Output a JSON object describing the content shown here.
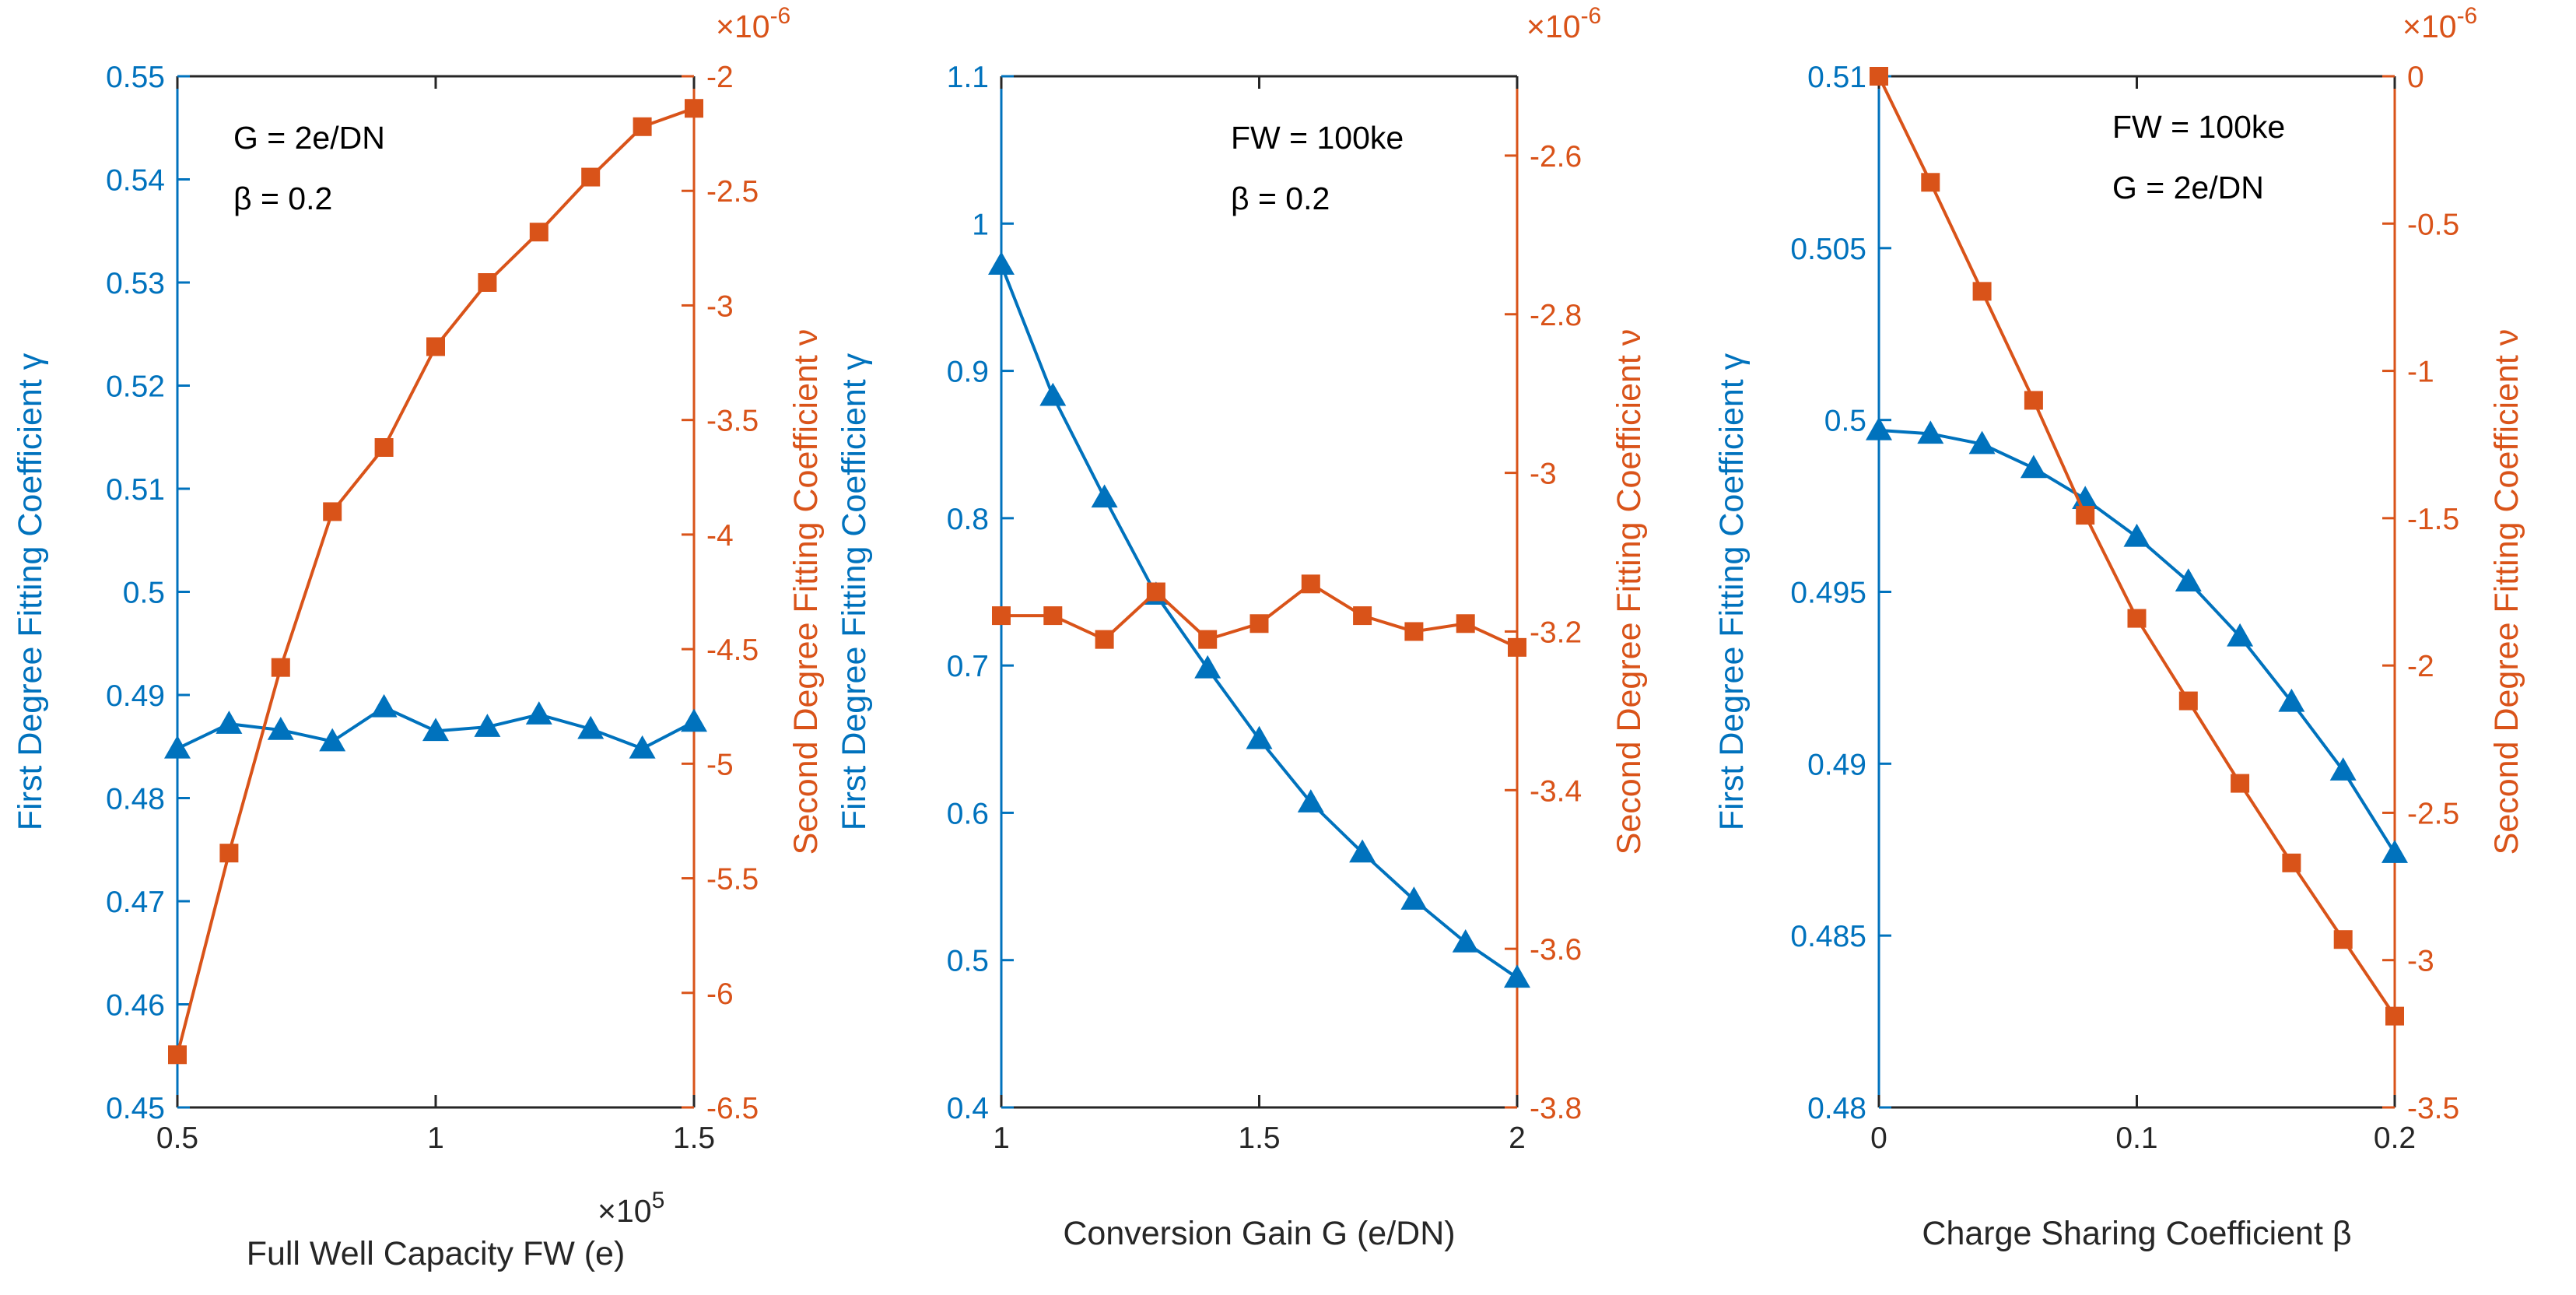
{
  "colors": {
    "left_series": "#0072BD",
    "right_series": "#D95319",
    "axis": "#262626"
  },
  "chart_data": [
    {
      "type": "line",
      "x": [
        0.5,
        0.6,
        0.7,
        0.8,
        0.9,
        1.0,
        1.1,
        1.2,
        1.3,
        1.4,
        1.5
      ],
      "x_ticks": [
        "0.5",
        "1",
        "1.5"
      ],
      "x_tick_values": [
        0.5,
        1.0,
        1.5
      ],
      "xlim": [
        0.5,
        1.5
      ],
      "xlabel": "Full Well Capacity FW (e)",
      "x_multiplier": "×10",
      "x_multiplier_exp": "5",
      "left_axis": {
        "label": "First Degree Fitting Coefficient γ",
        "ylim": [
          0.45,
          0.55
        ],
        "ticks": [
          "0.45",
          "0.46",
          "0.47",
          "0.48",
          "0.49",
          "0.5",
          "0.51",
          "0.52",
          "0.53",
          "0.54",
          "0.55"
        ],
        "tick_values": [
          0.45,
          0.46,
          0.47,
          0.48,
          0.49,
          0.5,
          0.51,
          0.52,
          0.53,
          0.54,
          0.55
        ]
      },
      "right_axis": {
        "label": "Second Degree Fitting Coefficient ν",
        "ylim": [
          -6.5,
          -2
        ],
        "ticks": [
          "-6.5",
          "-6",
          "-5.5",
          "-5",
          "-4.5",
          "-4",
          "-3.5",
          "-3",
          "-2.5",
          "-2"
        ],
        "tick_values": [
          -6.5,
          -6,
          -5.5,
          -5,
          -4.5,
          -4,
          -3.5,
          -3,
          -2.5,
          -2
        ],
        "multiplier": "×10",
        "multiplier_exp": "-6"
      },
      "series": [
        {
          "name": "γ",
          "axis": "left",
          "marker": "triangle",
          "values": [
            0.4848,
            0.4872,
            0.4866,
            0.4855,
            0.4888,
            0.4865,
            0.4869,
            0.4881,
            0.4867,
            0.4848,
            0.4874
          ]
        },
        {
          "name": "ν",
          "axis": "right",
          "marker": "square",
          "values": [
            -6.27,
            -5.39,
            -4.58,
            -3.9,
            -3.62,
            -3.18,
            -2.9,
            -2.68,
            -2.44,
            -2.22,
            -2.14
          ]
        }
      ],
      "annotations": [
        "G = 2e/DN",
        "β = 0.2"
      ]
    },
    {
      "type": "line",
      "x": [
        1.0,
        1.1,
        1.2,
        1.3,
        1.4,
        1.5,
        1.6,
        1.7,
        1.8,
        1.9,
        2.0
      ],
      "x_ticks": [
        "1",
        "1.5",
        "2"
      ],
      "x_tick_values": [
        1.0,
        1.5,
        2.0
      ],
      "xlim": [
        1,
        2
      ],
      "xlabel": "Conversion Gain G (e/DN)",
      "left_axis": {
        "label": "First Degree Fitting Coefficient γ",
        "ylim": [
          0.4,
          1.1
        ],
        "ticks": [
          "0.4",
          "0.5",
          "0.6",
          "0.7",
          "0.8",
          "0.9",
          "1",
          "1.1"
        ],
        "tick_values": [
          0.4,
          0.5,
          0.6,
          0.7,
          0.8,
          0.9,
          1.0,
          1.1
        ]
      },
      "right_axis": {
        "label": "Second Degree Fitting Coefficient ν",
        "ylim": [
          -3.8,
          -2.5
        ],
        "ticks": [
          "-3.8",
          "-3.6",
          "-3.4",
          "-3.2",
          "-3",
          "-2.8",
          "-2.6"
        ],
        "tick_values": [
          -3.8,
          -3.6,
          -3.4,
          -3.2,
          -3.0,
          -2.8,
          -2.6
        ],
        "multiplier": "×10",
        "multiplier_exp": "-6"
      },
      "series": [
        {
          "name": "γ",
          "axis": "left",
          "marker": "triangle",
          "values": [
            0.972,
            0.883,
            0.814,
            0.748,
            0.698,
            0.65,
            0.607,
            0.573,
            0.541,
            0.512,
            0.488
          ]
        },
        {
          "name": "ν",
          "axis": "right",
          "marker": "square",
          "values": [
            -3.18,
            -3.18,
            -3.21,
            -3.15,
            -3.21,
            -3.19,
            -3.14,
            -3.18,
            -3.2,
            -3.19,
            -3.22
          ]
        }
      ],
      "annotations": [
        "FW = 100ke",
        "β = 0.2"
      ]
    },
    {
      "type": "line",
      "x": [
        0.0,
        0.02,
        0.04,
        0.06,
        0.08,
        0.1,
        0.12,
        0.14,
        0.16,
        0.18,
        0.2
      ],
      "x_ticks": [
        "0",
        "0.1",
        "0.2"
      ],
      "x_tick_values": [
        0.0,
        0.1,
        0.2
      ],
      "xlim": [
        0,
        0.2
      ],
      "xlabel": "Charge Sharing Coefficient β",
      "left_axis": {
        "label": "First Degree Fitting Coefficient γ",
        "ylim": [
          0.48,
          0.51
        ],
        "ticks": [
          "0.48",
          "0.485",
          "0.49",
          "0.495",
          "0.5",
          "0.505",
          "0.51"
        ],
        "tick_values": [
          0.48,
          0.485,
          0.49,
          0.495,
          0.5,
          0.505,
          0.51
        ]
      },
      "right_axis": {
        "label": "Second Degree Fitting Coefficient ν",
        "ylim": [
          -3.5,
          0
        ],
        "ticks": [
          "-3.5",
          "-3",
          "-2.5",
          "-2",
          "-1.5",
          "-1",
          "-0.5",
          "0"
        ],
        "tick_values": [
          -3.5,
          -3,
          -2.5,
          -2,
          -1.5,
          -1,
          -0.5,
          0
        ],
        "multiplier": "×10",
        "multiplier_exp": "-6"
      },
      "series": [
        {
          "name": "γ",
          "axis": "left",
          "marker": "triangle",
          "values": [
            0.4997,
            0.4996,
            0.4993,
            0.4986,
            0.4977,
            0.4966,
            0.4953,
            0.4937,
            0.4918,
            0.4898,
            0.4874
          ]
        },
        {
          "name": "ν",
          "axis": "right",
          "marker": "square",
          "values": [
            0.0,
            -0.36,
            -0.73,
            -1.1,
            -1.49,
            -1.84,
            -2.12,
            -2.4,
            -2.67,
            -2.93,
            -3.19
          ]
        }
      ],
      "annotations": [
        "FW = 100ke",
        "G = 2e/DN"
      ]
    }
  ]
}
